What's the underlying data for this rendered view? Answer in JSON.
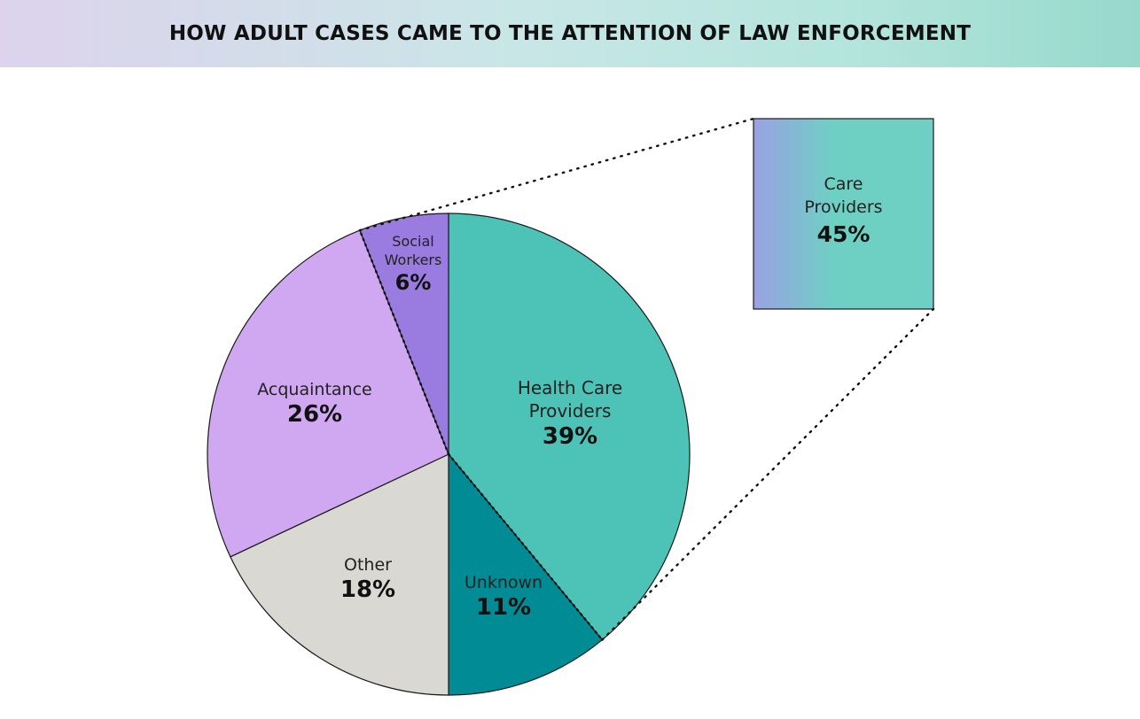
{
  "chart_data": {
    "type": "pie",
    "title": "HOW ADULT CASES CAME TO THE ATTENTION OF LAW ENFORCEMENT",
    "slices": [
      {
        "label": [
          "Health Care",
          "Providers"
        ],
        "value": 39,
        "value_label": "39%",
        "color": "#4dc2b7"
      },
      {
        "label": [
          "Unknown"
        ],
        "value": 11,
        "value_label": "11%",
        "color": "#008b95"
      },
      {
        "label": [
          "Other"
        ],
        "value": 18,
        "value_label": "18%",
        "color": "#dad8d3"
      },
      {
        "label": [
          "Acquaintance"
        ],
        "value": 26,
        "value_label": "26%",
        "color": "#d0a8f2"
      },
      {
        "label": [
          "Social",
          "Workers"
        ],
        "value": 6,
        "value_label": "6%",
        "color": "#9a7ce0"
      }
    ],
    "callout": {
      "label": [
        "Care",
        "Providers"
      ],
      "value": 45,
      "value_label": "45%",
      "combines": [
        "Health Care Providers",
        "Social Workers"
      ],
      "gradient": [
        "#9aa2e4",
        "#6ed0c3"
      ]
    },
    "legend": "none"
  }
}
